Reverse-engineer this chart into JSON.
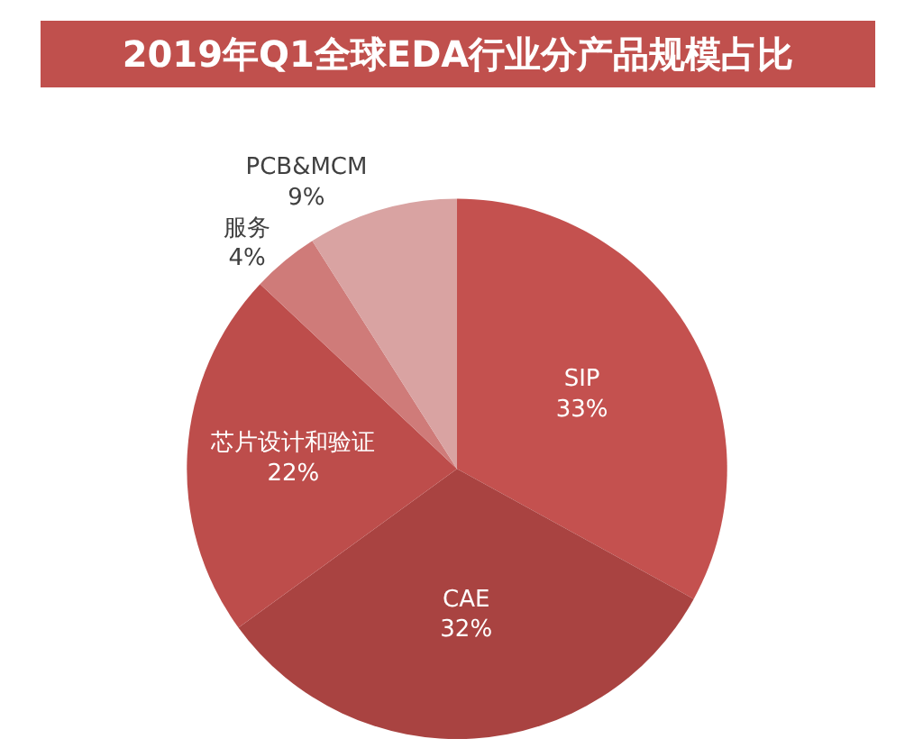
{
  "chart_data": {
    "type": "pie",
    "title": "2019年Q1全球EDA行业分产品规模占比",
    "categories": [
      "SIP",
      "CAE",
      "芯片设计和验证",
      "服务",
      "PCB&MCM"
    ],
    "values": [
      33,
      32,
      22,
      4,
      9
    ],
    "colors": [
      "#c4514f",
      "#a94341",
      "#bd4d4b",
      "#cf7b79",
      "#d9a3a2"
    ],
    "value_labels": [
      "33%",
      "32%",
      "22%",
      "4%",
      "9%"
    ],
    "legend": false
  }
}
